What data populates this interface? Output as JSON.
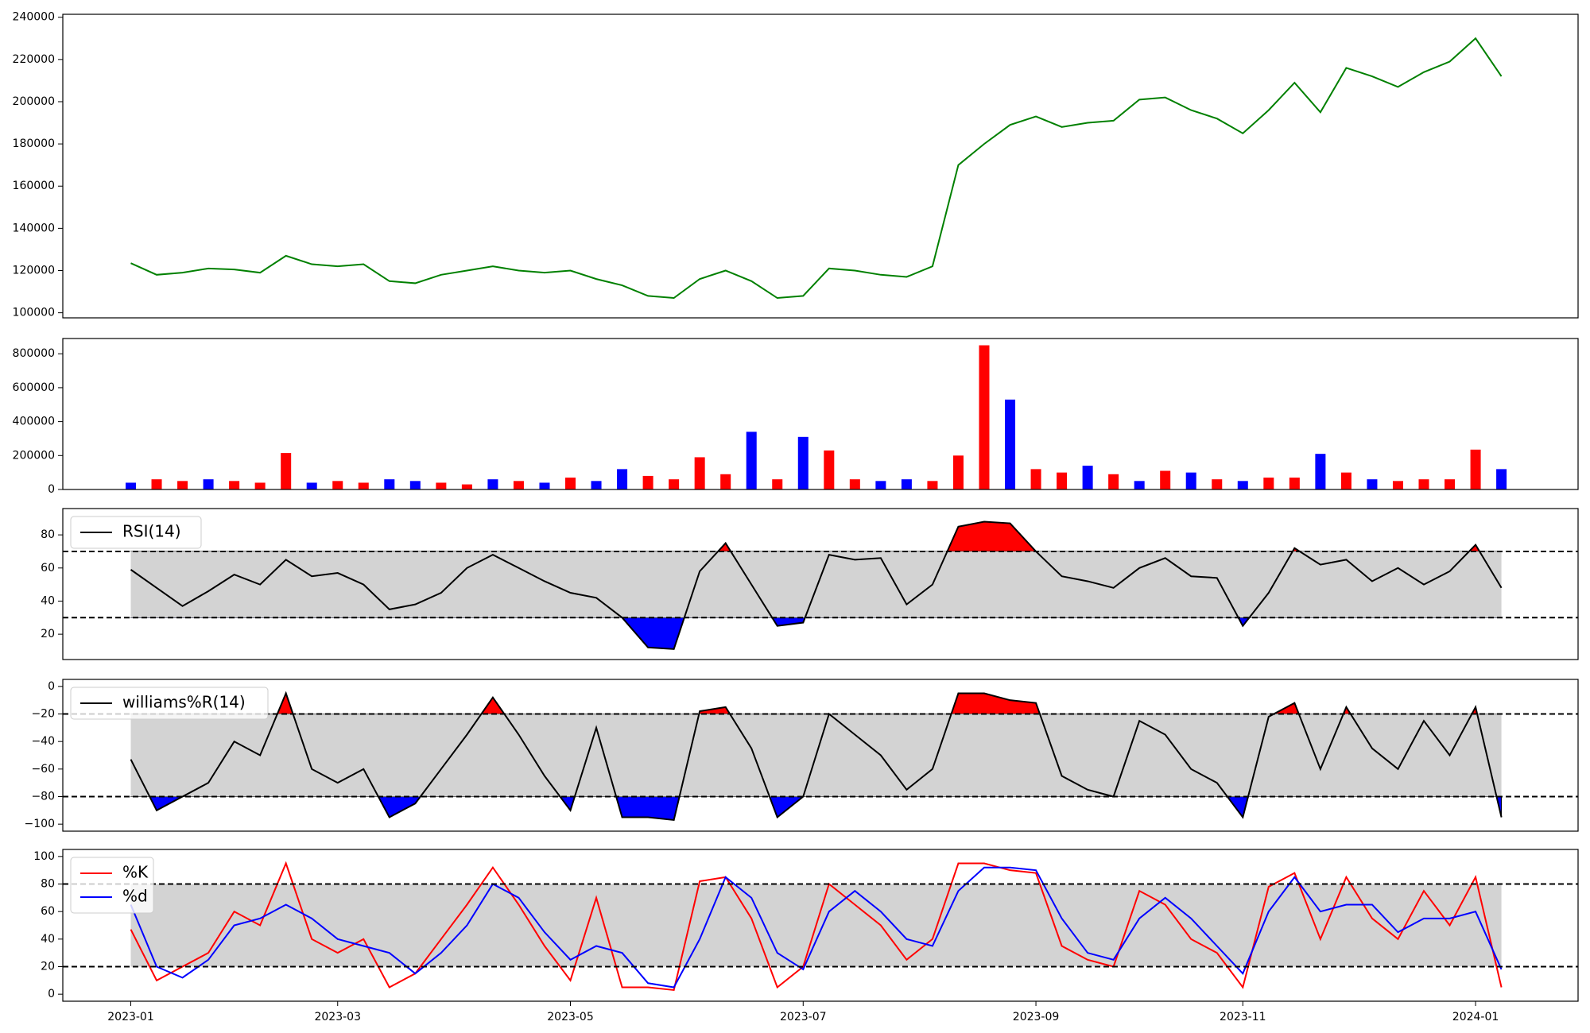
{
  "chart_data": [
    {
      "type": "line",
      "ylim": [
        97600,
        241400
      ],
      "yticks": [
        100000,
        120000,
        140000,
        160000,
        180000,
        200000,
        220000,
        240000
      ],
      "series": [
        {
          "color": "#008000",
          "values": [
            123500,
            118000,
            119000,
            121000,
            120500,
            119000,
            127000,
            123000,
            122000,
            123000,
            115000,
            114000,
            118000,
            120000,
            122000,
            120000,
            119000,
            120000,
            116000,
            113000,
            108000,
            107000,
            116000,
            120000,
            115000,
            107000,
            108000,
            121000,
            120000,
            118000,
            117000,
            122000,
            170000,
            180000,
            189000,
            193000,
            188000,
            190000,
            191000,
            201000,
            202000,
            196000,
            192000,
            185000,
            196000,
            209000,
            195000,
            216000,
            212000,
            207000,
            214000,
            219000,
            230000,
            212000
          ]
        }
      ]
    },
    {
      "type": "bar",
      "ylim": [
        0,
        890000
      ],
      "yticks": [
        0,
        200000,
        400000,
        600000,
        800000
      ],
      "values": [
        40000,
        60000,
        50000,
        60000,
        50000,
        40000,
        215000,
        40000,
        50000,
        40000,
        60000,
        50000,
        40000,
        30000,
        60000,
        50000,
        40000,
        70000,
        50000,
        120000,
        80000,
        60000,
        190000,
        90000,
        340000,
        60000,
        310000,
        230000,
        60000,
        50000,
        60000,
        50000,
        200000,
        850000,
        530000,
        120000,
        100000,
        140000,
        90000,
        50000,
        110000,
        100000,
        60000,
        50000,
        70000,
        70000,
        210000,
        100000,
        60000,
        50000,
        60000,
        60000,
        235000,
        120000
      ],
      "colors": [
        "#0000ff",
        "#ff0000",
        "#ff0000",
        "#0000ff",
        "#ff0000",
        "#ff0000",
        "#ff0000",
        "#0000ff",
        "#ff0000",
        "#ff0000",
        "#0000ff",
        "#0000ff",
        "#ff0000",
        "#ff0000",
        "#0000ff",
        "#ff0000",
        "#0000ff",
        "#ff0000",
        "#0000ff",
        "#0000ff",
        "#ff0000",
        "#ff0000",
        "#ff0000",
        "#ff0000",
        "#0000ff",
        "#ff0000",
        "#0000ff",
        "#ff0000",
        "#ff0000",
        "#0000ff",
        "#0000ff",
        "#ff0000",
        "#ff0000",
        "#ff0000",
        "#0000ff",
        "#ff0000",
        "#ff0000",
        "#0000ff",
        "#ff0000",
        "#0000ff",
        "#ff0000",
        "#0000ff",
        "#ff0000",
        "#0000ff",
        "#ff0000",
        "#ff0000",
        "#0000ff",
        "#ff0000",
        "#0000ff",
        "#ff0000",
        "#ff0000",
        "#ff0000",
        "#ff0000",
        "#0000ff"
      ]
    },
    {
      "type": "line",
      "ylim": [
        4.7,
        95.9
      ],
      "yticks": [
        20,
        40,
        60,
        80
      ],
      "hlines": [
        70,
        30
      ],
      "band_color": "#d3d3d3",
      "fill_colors": {
        "above": "#ff0000",
        "below": "#0000ff"
      },
      "legend": "upper left",
      "series": [
        {
          "name": "RSI(14)",
          "color": "#000000",
          "values": [
            59,
            48,
            37,
            46,
            56,
            50,
            65,
            55,
            57,
            50,
            35,
            38,
            45,
            60,
            68,
            60,
            52,
            45,
            42,
            30,
            12,
            11,
            58,
            75,
            50,
            25,
            27,
            68,
            65,
            66,
            38,
            50,
            85,
            88,
            87,
            70,
            55,
            52,
            48,
            60,
            66,
            55,
            54,
            25,
            45,
            72,
            62,
            65,
            52,
            60,
            50,
            58,
            74,
            48
          ]
        }
      ]
    },
    {
      "type": "line",
      "ylim": [
        -105.1,
        5.1
      ],
      "yticks": [
        0,
        {
          "value": -20,
          "label": "−20"
        },
        {
          "value": -40,
          "label": "−40"
        },
        {
          "value": -60,
          "label": "−60"
        },
        {
          "value": -80,
          "label": "−80"
        },
        {
          "value": -100,
          "label": "−100"
        }
      ],
      "hlines": [
        -20,
        -80
      ],
      "band_color": "#d3d3d3",
      "fill_colors": {
        "above": "#ff0000",
        "below": "#0000ff"
      },
      "legend": "upper left",
      "series": [
        {
          "name": "williams%R(14)",
          "color": "#000000",
          "values": [
            -53,
            -90,
            -80,
            -70,
            -40,
            -50,
            -5,
            -60,
            -70,
            -60,
            -95,
            -85,
            -60,
            -35,
            -8,
            -35,
            -65,
            -90,
            -30,
            -95,
            -95,
            -97,
            -18,
            -15,
            -45,
            -95,
            -80,
            -20,
            -35,
            -50,
            -75,
            -60,
            -5,
            -5,
            -10,
            -12,
            -65,
            -75,
            -80,
            -25,
            -35,
            -60,
            -70,
            -95,
            -22,
            -12,
            -60,
            -15,
            -45,
            -60,
            -25,
            -50,
            -15,
            -95
          ]
        }
      ]
    },
    {
      "type": "line",
      "ylim": [
        -5.1,
        105.1
      ],
      "yticks": [
        0,
        20,
        40,
        60,
        80,
        100
      ],
      "hlines": [
        80,
        20
      ],
      "band_color": "#d3d3d3",
      "legend": "upper left",
      "categories": [
        "2023-01",
        null,
        null,
        null,
        null,
        null,
        null,
        null,
        "2023-03",
        null,
        null,
        null,
        null,
        null,
        null,
        null,
        null,
        "2023-05",
        null,
        null,
        null,
        null,
        null,
        null,
        null,
        null,
        "2023-07",
        null,
        null,
        null,
        null,
        null,
        null,
        null,
        null,
        "2023-09",
        null,
        null,
        null,
        null,
        null,
        null,
        null,
        "2023-11",
        null,
        null,
        null,
        null,
        null,
        null,
        null,
        null,
        "2024-01",
        null
      ],
      "series": [
        {
          "name": "%K",
          "color": "#ff0000",
          "values": [
            47,
            10,
            20,
            30,
            60,
            50,
            95,
            40,
            30,
            40,
            5,
            15,
            40,
            65,
            92,
            65,
            35,
            10,
            70,
            5,
            5,
            3,
            82,
            85,
            55,
            5,
            20,
            80,
            65,
            50,
            25,
            40,
            95,
            95,
            90,
            88,
            35,
            25,
            20,
            75,
            65,
            40,
            30,
            5,
            78,
            88,
            40,
            85,
            55,
            40,
            75,
            50,
            85,
            5
          ]
        },
        {
          "name": "%d",
          "color": "#0000ff",
          "values": [
            65,
            20,
            12,
            25,
            50,
            55,
            65,
            55,
            40,
            35,
            30,
            15,
            30,
            50,
            80,
            70,
            45,
            25,
            35,
            30,
            8,
            5,
            40,
            85,
            70,
            30,
            18,
            60,
            75,
            60,
            40,
            35,
            75,
            92,
            92,
            90,
            55,
            30,
            25,
            55,
            70,
            55,
            35,
            15,
            60,
            85,
            60,
            65,
            65,
            45,
            55,
            55,
            60,
            18
          ]
        }
      ]
    }
  ]
}
